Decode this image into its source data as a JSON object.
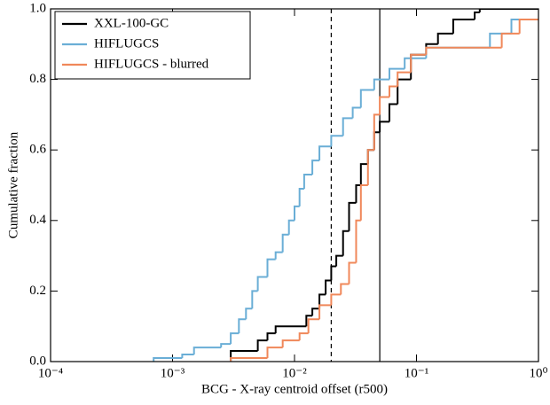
{
  "chart_data": {
    "type": "step",
    "xlabel": "BCG - X-ray centroid offset (r500)",
    "ylabel": "Cumulative fraction",
    "xscale": "log",
    "xlim": [
      0.0001,
      1
    ],
    "ylim": [
      0,
      1
    ],
    "xticks": [
      {
        "value": 0.0001,
        "label": "10⁻⁴"
      },
      {
        "value": 0.001,
        "label": "10⁻³"
      },
      {
        "value": 0.01,
        "label": "10⁻²"
      },
      {
        "value": 0.1,
        "label": "10⁻¹"
      },
      {
        "value": 1,
        "label": "10⁰"
      }
    ],
    "yticks": [
      {
        "value": 0,
        "label": "0.0"
      },
      0.2,
      0.4,
      0.6,
      0.8,
      {
        "value": 1,
        "label": "1.0"
      }
    ],
    "legend": "upper left",
    "vlines": [
      {
        "x": 0.02,
        "style": "dashed"
      },
      {
        "x": 0.05,
        "style": "solid"
      }
    ],
    "series": [
      {
        "name": "XXL-100-GC",
        "color": "#000000",
        "x": [
          0.003,
          0.005,
          0.006,
          0.007,
          0.0125,
          0.014,
          0.016,
          0.018,
          0.02,
          0.022,
          0.025,
          0.028,
          0.032,
          0.035,
          0.04,
          0.045,
          0.05,
          0.06,
          0.07,
          0.09,
          0.12,
          0.15,
          0.2,
          0.3,
          0.33,
          1
        ],
        "values": [
          0.03,
          0.06,
          0.08,
          0.1,
          0.13,
          0.15,
          0.19,
          0.23,
          0.27,
          0.3,
          0.37,
          0.45,
          0.5,
          0.56,
          0.6,
          0.65,
          0.68,
          0.73,
          0.8,
          0.87,
          0.9,
          0.93,
          0.97,
          0.99,
          1.0,
          1.0
        ]
      },
      {
        "name": "HIFLUGCS",
        "color": "#6aaed6",
        "x": [
          0.0007,
          0.0012,
          0.0015,
          0.0025,
          0.003,
          0.0035,
          0.004,
          0.0045,
          0.005,
          0.006,
          0.007,
          0.008,
          0.009,
          0.01,
          0.011,
          0.012,
          0.014,
          0.016,
          0.02,
          0.025,
          0.03,
          0.035,
          0.045,
          0.06,
          0.08,
          0.12,
          0.2,
          0.4,
          0.6,
          1
        ],
        "values": [
          0.01,
          0.02,
          0.04,
          0.05,
          0.08,
          0.12,
          0.15,
          0.2,
          0.24,
          0.29,
          0.31,
          0.36,
          0.4,
          0.44,
          0.49,
          0.53,
          0.57,
          0.61,
          0.64,
          0.69,
          0.72,
          0.77,
          0.8,
          0.83,
          0.86,
          0.89,
          0.89,
          0.93,
          0.97,
          0.97
        ]
      },
      {
        "name": "HIFLUGCS - blurred",
        "color": "#f0885a",
        "x": [
          0.003,
          0.006,
          0.008,
          0.011,
          0.013,
          0.016,
          0.02,
          0.024,
          0.028,
          0.032,
          0.035,
          0.04,
          0.045,
          0.05,
          0.06,
          0.07,
          0.09,
          0.12,
          0.3,
          0.5,
          0.7,
          1
        ],
        "values": [
          0.01,
          0.04,
          0.06,
          0.08,
          0.12,
          0.16,
          0.19,
          0.22,
          0.28,
          0.4,
          0.5,
          0.6,
          0.7,
          0.75,
          0.78,
          0.82,
          0.87,
          0.89,
          0.89,
          0.93,
          0.97,
          0.97
        ]
      }
    ]
  }
}
